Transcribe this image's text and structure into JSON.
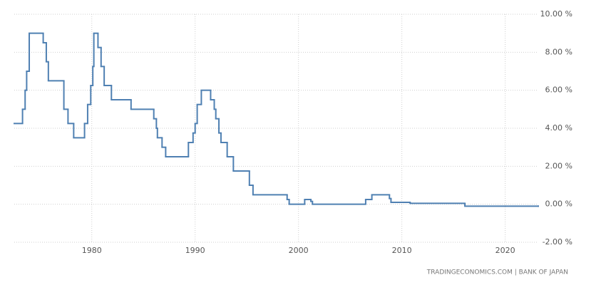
{
  "chart_data": {
    "type": "step",
    "source": "TRADINGECONOMICS.COM | BANK OF JAPAN",
    "color": "#4f80b2",
    "grid": true,
    "xlim": [
      1972.5,
      2023.2
    ],
    "xticks": [
      1980,
      1990,
      2000,
      2010,
      2020
    ],
    "ylim": [
      -2,
      10
    ],
    "yticks": [
      {
        "value": -2,
        "label": "-2.00 %"
      },
      {
        "value": 0,
        "label": "0.00 %"
      },
      {
        "value": 2,
        "label": "2.00 %"
      },
      {
        "value": 4,
        "label": "4.00 %"
      },
      {
        "value": 6,
        "label": "6.00 %"
      },
      {
        "value": 8,
        "label": "8.00 %"
      },
      {
        "value": 10,
        "label": "10.00 %"
      }
    ],
    "x": [
      1972.5,
      1973.3,
      1973.55,
      1973.7,
      1973.95,
      1975.3,
      1975.6,
      1975.8,
      1977.3,
      1977.7,
      1978.25,
      1979.3,
      1979.6,
      1979.9,
      1980.1,
      1980.2,
      1980.6,
      1980.9,
      1981.2,
      1981.9,
      1983.8,
      1986.0,
      1986.25,
      1986.35,
      1986.8,
      1987.15,
      1989.35,
      1989.8,
      1990.0,
      1990.2,
      1990.6,
      1991.5,
      1991.85,
      1992.0,
      1992.3,
      1992.5,
      1993.1,
      1993.7,
      1995.25,
      1995.6,
      1998.9,
      1999.1,
      2000.6,
      2001.2,
      2001.35,
      2006.5,
      2007.1,
      2008.8,
      2008.95,
      2010.8,
      2016.1,
      2023.2
    ],
    "values": [
      4.25,
      5.0,
      6.0,
      7.0,
      9.0,
      8.5,
      7.5,
      6.5,
      5.0,
      4.25,
      3.5,
      4.25,
      5.25,
      6.25,
      7.25,
      9.0,
      8.25,
      7.25,
      6.25,
      5.5,
      5.0,
      4.5,
      4.0,
      3.5,
      3.0,
      2.5,
      3.25,
      3.75,
      4.25,
      5.25,
      6.0,
      5.5,
      5.0,
      4.5,
      3.75,
      3.25,
      2.5,
      1.75,
      1.0,
      0.5,
      0.25,
      0.0,
      0.25,
      0.15,
      0.0,
      0.25,
      0.5,
      0.3,
      0.1,
      0.05,
      -0.1,
      -0.1
    ]
  }
}
